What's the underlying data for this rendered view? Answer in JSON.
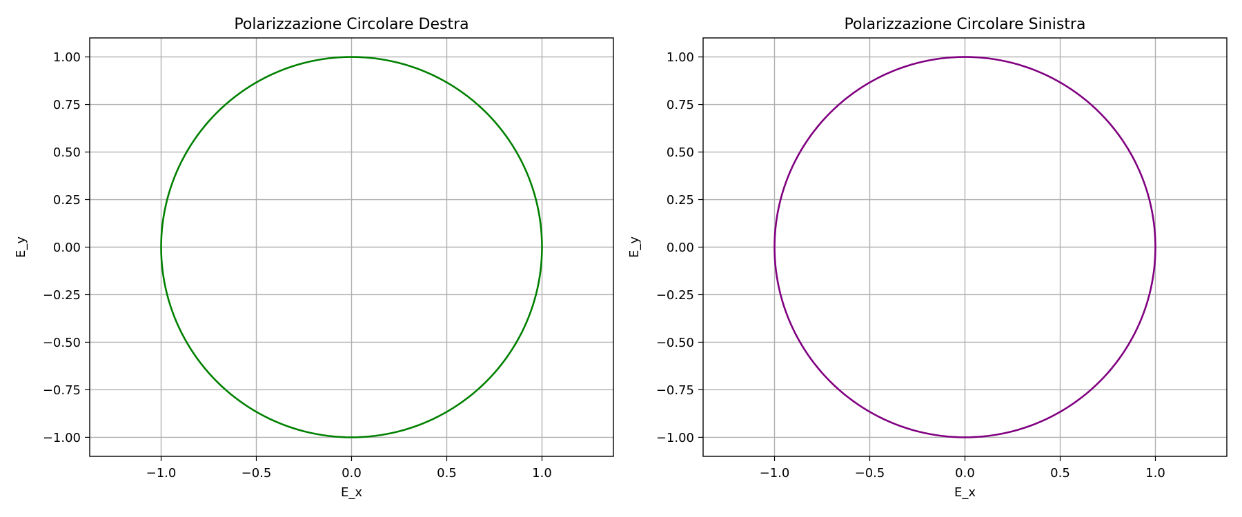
{
  "chart_data": [
    {
      "type": "line",
      "title": "Polarizzazione Circolare Destra",
      "xlabel": "E_x",
      "ylabel": "E_y",
      "xlim": [
        -1.375,
        1.375
      ],
      "ylim": [
        -1.1,
        1.1
      ],
      "grid": true,
      "x_ticks": [
        -1.0,
        -0.5,
        0.0,
        0.5,
        1.0
      ],
      "x_tick_labels": [
        "−1.0",
        "−0.5",
        "0.0",
        "0.5",
        "1.0"
      ],
      "y_ticks": [
        1.0,
        0.75,
        0.5,
        0.25,
        0.0,
        -0.25,
        -0.5,
        -0.75,
        -1.0
      ],
      "y_tick_labels": [
        "1.00",
        "0.75",
        "0.50",
        "0.25",
        "0.00",
        "−0.25",
        "−0.50",
        "−0.75",
        "−1.00"
      ],
      "series": [
        {
          "shape": "circle",
          "center": [
            0,
            0
          ],
          "radius": 1.0,
          "color": "#008000"
        }
      ]
    },
    {
      "type": "line",
      "title": "Polarizzazione Circolare Sinistra",
      "xlabel": "E_x",
      "ylabel": "E_y",
      "xlim": [
        -1.375,
        1.375
      ],
      "ylim": [
        -1.1,
        1.1
      ],
      "grid": true,
      "x_ticks": [
        -1.0,
        -0.5,
        0.0,
        0.5,
        1.0
      ],
      "x_tick_labels": [
        "−1.0",
        "−0.5",
        "0.0",
        "0.5",
        "1.0"
      ],
      "y_ticks": [
        1.0,
        0.75,
        0.5,
        0.25,
        0.0,
        -0.25,
        -0.5,
        -0.75,
        -1.0
      ],
      "y_tick_labels": [
        "1.00",
        "0.75",
        "0.50",
        "0.25",
        "0.00",
        "−0.25",
        "−0.50",
        "−0.75",
        "−1.00"
      ],
      "series": [
        {
          "shape": "circle",
          "center": [
            0,
            0
          ],
          "radius": 1.0,
          "color": "#800080"
        }
      ]
    }
  ]
}
